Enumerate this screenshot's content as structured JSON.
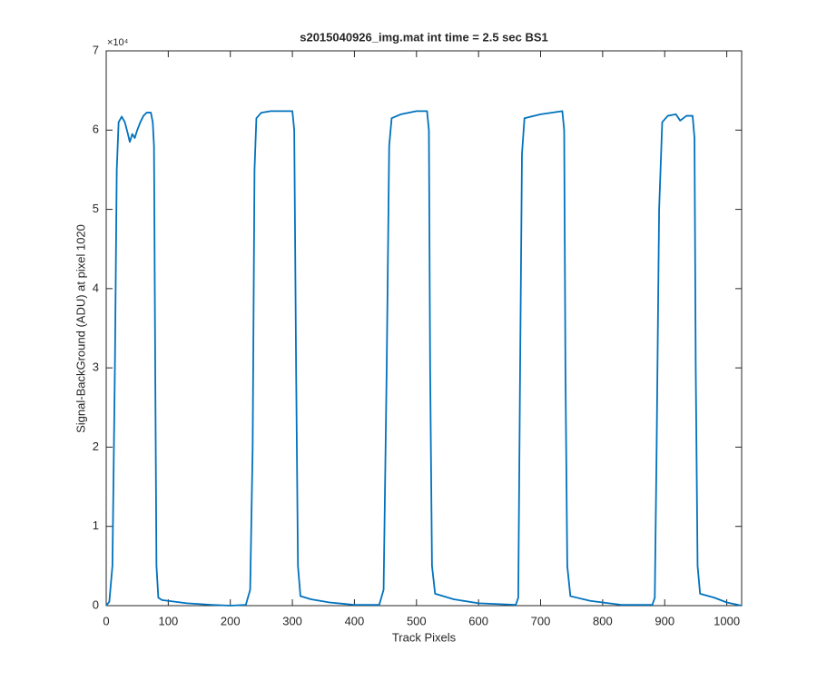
{
  "chart_data": {
    "type": "line",
    "title": "s2015040926_img.mat int time = 2.5 sec   BS1",
    "x_label": "Track Pixels",
    "y_label": "Signal-BackGround (ADU) at pixel 1020",
    "y_multiplier": "×10⁴",
    "xlim": [
      0,
      1024
    ],
    "xticks": [
      0,
      100,
      200,
      300,
      400,
      500,
      600,
      700,
      800,
      900,
      1000
    ],
    "ylim": [
      0,
      7
    ],
    "yticks": [
      0,
      1,
      2,
      3,
      4,
      5,
      6,
      7
    ],
    "grid": false,
    "series": [
      {
        "name": "BS1",
        "color": "#0072bd",
        "x": [
          0,
          5,
          10,
          14,
          17,
          20,
          25,
          30,
          35,
          38,
          42,
          46,
          50,
          55,
          60,
          65,
          72,
          75,
          77,
          79,
          81,
          84,
          90,
          100,
          130,
          170,
          200,
          225,
          232,
          236,
          239,
          242,
          250,
          265,
          300,
          303,
          306,
          309,
          313,
          330,
          360,
          400,
          440,
          447,
          452,
          456,
          460,
          475,
          500,
          517,
          520,
          522,
          525,
          530,
          560,
          600,
          660,
          664,
          667,
          670,
          674,
          700,
          735,
          738,
          740,
          743,
          748,
          780,
          830,
          880,
          884,
          887,
          891,
          896,
          905,
          918,
          925,
          935,
          945,
          948,
          950,
          953,
          957,
          980,
          1000,
          1024
        ],
        "values": [
          0.0,
          0.05,
          0.5,
          3,
          5.5,
          6.1,
          6.17,
          6.1,
          5.95,
          5.85,
          5.95,
          5.9,
          6.0,
          6.1,
          6.18,
          6.22,
          6.22,
          6.1,
          5.8,
          3,
          0.5,
          0.1,
          0.07,
          0.06,
          0.03,
          0.01,
          0.0,
          0.01,
          0.2,
          2,
          5.5,
          6.15,
          6.22,
          6.24,
          6.24,
          6.0,
          3,
          0.5,
          0.12,
          0.08,
          0.04,
          0.01,
          0.01,
          0.2,
          3,
          5.8,
          6.15,
          6.2,
          6.24,
          6.24,
          6.0,
          3,
          0.5,
          0.15,
          0.08,
          0.03,
          0.01,
          0.1,
          3,
          5.7,
          6.15,
          6.2,
          6.24,
          6.0,
          3,
          0.5,
          0.12,
          0.06,
          0.01,
          0.01,
          0.1,
          2,
          5.0,
          6.1,
          6.18,
          6.2,
          6.12,
          6.18,
          6.18,
          5.9,
          3,
          0.5,
          0.15,
          0.1,
          0.04,
          0.0
        ]
      }
    ]
  }
}
